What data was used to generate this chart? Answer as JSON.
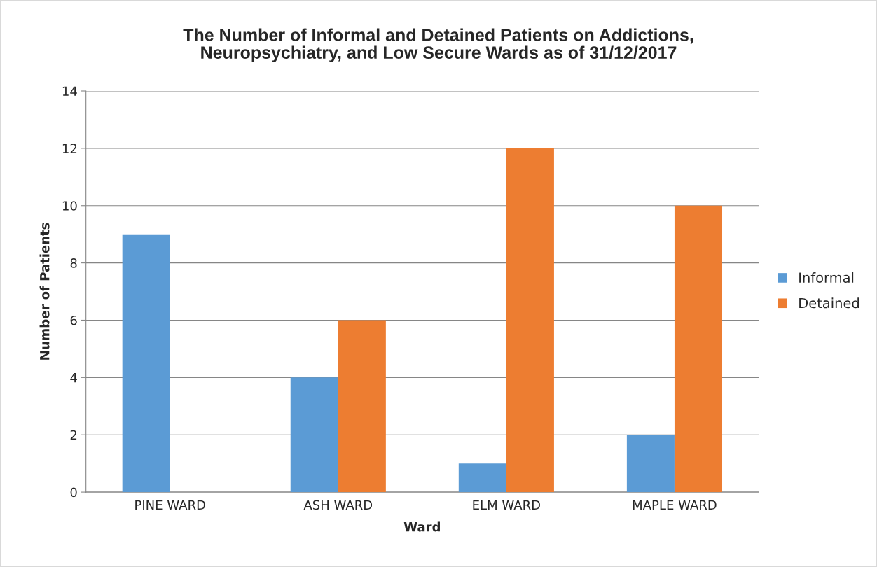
{
  "chart_data": {
    "type": "bar",
    "title": "The Number of Informal and Detained Patients on Addictions,\nNeuropsychiatry, and Low Secure Wards as of 31/12/2017",
    "xlabel": "Ward",
    "ylabel": "Number of Patients",
    "categories": [
      "PINE WARD",
      "ASH WARD",
      "ELM WARD",
      "MAPLE WARD"
    ],
    "series": [
      {
        "name": "Informal",
        "color": "#5b9bd5",
        "values": [
          9,
          4,
          1,
          2
        ]
      },
      {
        "name": "Detained",
        "color": "#ed7d31",
        "values": [
          null,
          6,
          12,
          10
        ]
      }
    ],
    "ylim": [
      0,
      14
    ],
    "yticks": [
      0,
      2,
      4,
      6,
      8,
      10,
      12,
      14
    ],
    "grid": "y",
    "legend": "right"
  }
}
